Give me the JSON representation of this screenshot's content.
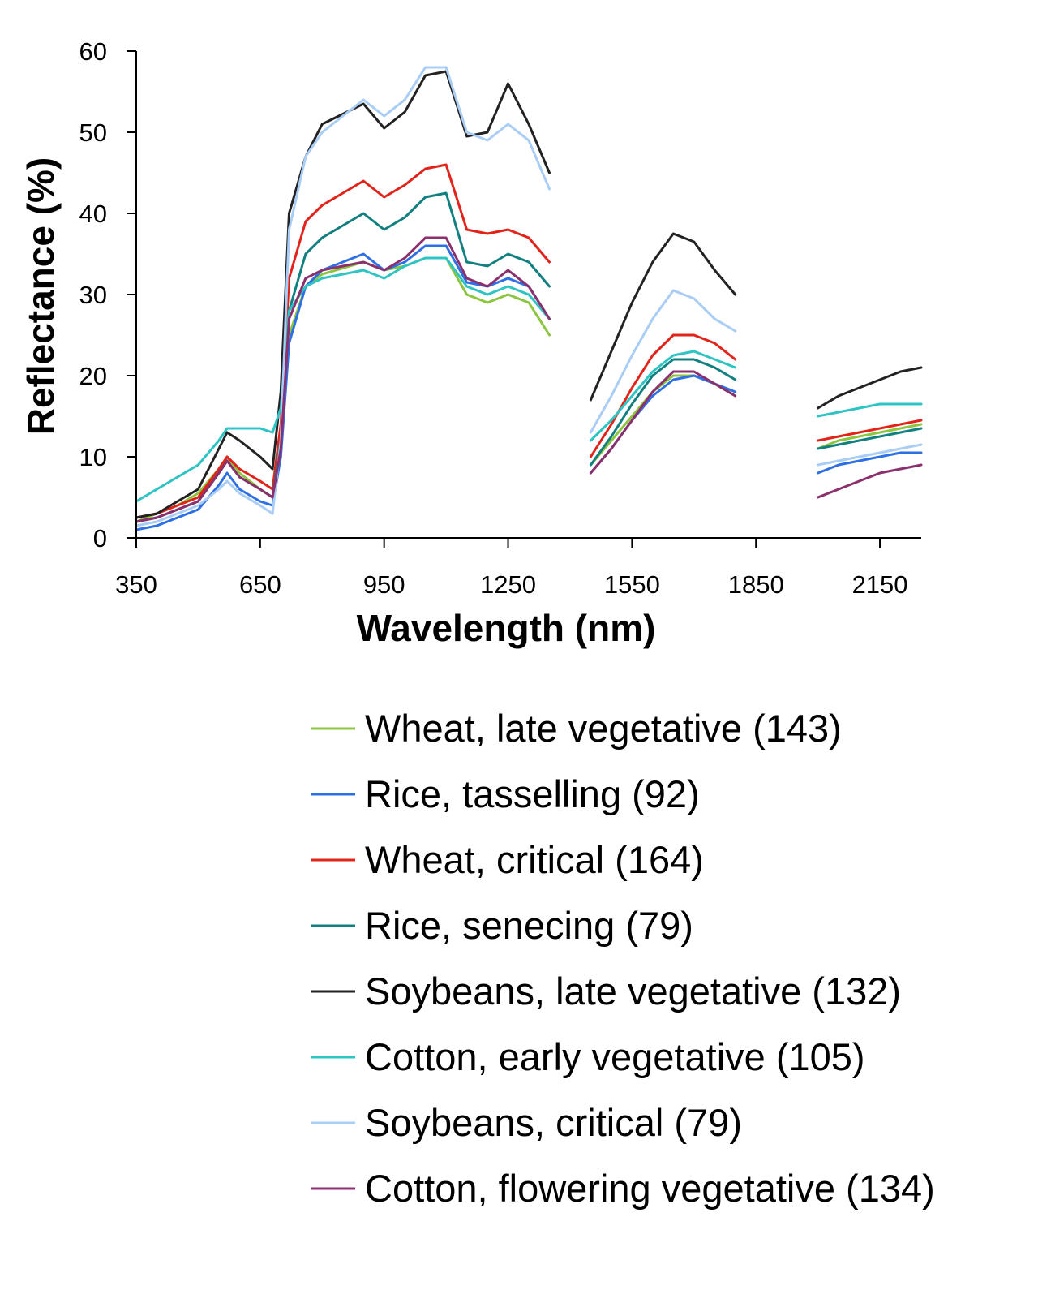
{
  "chart_data": {
    "type": "line",
    "title": "",
    "xlabel": "Wavelength (nm)",
    "ylabel": "Reflectance (%)",
    "xlim": [
      350,
      2250
    ],
    "ylim": [
      0,
      60
    ],
    "x_ticks": [
      350,
      650,
      950,
      1250,
      1550,
      1850,
      2150
    ],
    "y_ticks": [
      0,
      10,
      20,
      30,
      40,
      50,
      60
    ],
    "grid": false,
    "legend_position": "bottom",
    "segments": [
      [
        350,
        1350
      ],
      [
        1450,
        1800
      ],
      [
        1990,
        2250
      ]
    ],
    "x": [
      350,
      400,
      450,
      500,
      550,
      570,
      600,
      650,
      680,
      700,
      720,
      760,
      800,
      900,
      950,
      1000,
      1050,
      1100,
      1150,
      1200,
      1250,
      1300,
      1350,
      1450,
      1500,
      1550,
      1600,
      1650,
      1700,
      1750,
      1800,
      2000,
      2050,
      2100,
      2150,
      2200,
      2250
    ],
    "series": [
      {
        "name": "Wheat, late vegetative (143)",
        "color": "#8cc63e",
        "values": [
          2,
          3,
          4,
          5.5,
          8.5,
          10,
          8,
          6,
          5,
          12,
          25,
          31,
          32.5,
          34,
          33,
          33.5,
          34.5,
          34.5,
          30,
          29,
          30,
          29,
          25,
          9,
          12,
          15,
          18,
          20,
          20,
          19,
          17.5,
          11,
          12,
          12.5,
          13,
          13.5,
          14
        ]
      },
      {
        "name": "Rice, tasselling (92)",
        "color": "#2f6fe4",
        "values": [
          1,
          1.5,
          2.5,
          3.5,
          6.5,
          8,
          6,
          4.5,
          4,
          10,
          24,
          31,
          33,
          35,
          33,
          34,
          36,
          36,
          31.5,
          31,
          32,
          31,
          27,
          8,
          11,
          14.5,
          17.5,
          19.5,
          20,
          19,
          18,
          8,
          9,
          9.5,
          10,
          10.5,
          10.5
        ]
      },
      {
        "name": "Wheat, critical (164)",
        "color": "#e2231a",
        "values": [
          2.5,
          3,
          4,
          5,
          8.5,
          10,
          8.5,
          7,
          6,
          14,
          32,
          39,
          41,
          44,
          42,
          43.5,
          45.5,
          46,
          38,
          37.5,
          38,
          37,
          34,
          10,
          14,
          18.5,
          22.5,
          25,
          25,
          24,
          22,
          12,
          12.5,
          13,
          13.5,
          14,
          14.5
        ]
      },
      {
        "name": "Rice, senecing (79)",
        "color": "#128080",
        "values": [
          2,
          2.5,
          3.5,
          4.5,
          8,
          9.5,
          7.5,
          6,
          5,
          12,
          28,
          35,
          37,
          40,
          38,
          39.5,
          42,
          42.5,
          34,
          33.5,
          35,
          34,
          31,
          9,
          12.5,
          16.5,
          20,
          22,
          22,
          21,
          19.5,
          11,
          11.5,
          12,
          12.5,
          13,
          13.5
        ]
      },
      {
        "name": "Soybeans, late vegetative (132)",
        "color": "#222222",
        "values": [
          2.5,
          3,
          4.5,
          6,
          11,
          13,
          12,
          10,
          8.5,
          18,
          40,
          47,
          51,
          53.5,
          50.5,
          52.5,
          57,
          57.5,
          49.5,
          50,
          56,
          51,
          45,
          17,
          23,
          29,
          34,
          37.5,
          36.5,
          33,
          30,
          16,
          17.5,
          18.5,
          19.5,
          20.5,
          21
        ]
      },
      {
        "name": "Cotton, early vegetative (105)",
        "color": "#2ec4c4",
        "values": [
          4.5,
          6,
          7.5,
          9,
          12,
          13.5,
          13.5,
          13.5,
          13,
          16,
          28,
          31,
          32,
          33,
          32,
          33.5,
          34.5,
          34.5,
          31,
          30,
          31,
          30,
          27,
          12,
          14.5,
          17.5,
          20.5,
          22.5,
          23,
          22,
          21,
          15,
          15.5,
          16,
          16.5,
          16.5,
          16.5
        ]
      },
      {
        "name": "Soybeans, critical (79)",
        "color": "#a9cdf5",
        "values": [
          1.5,
          2,
          3,
          4,
          6,
          7,
          5.5,
          4,
          3,
          12,
          38,
          47,
          50,
          54,
          52,
          54,
          58,
          58,
          50,
          49,
          51,
          49,
          43,
          13,
          17.5,
          22.5,
          27,
          30.5,
          29.5,
          27,
          25.5,
          9,
          9.5,
          10,
          10.5,
          11,
          11.5
        ]
      },
      {
        "name": "Cotton, flowering vegetative (134)",
        "color": "#8b2f6d",
        "values": [
          2,
          2.5,
          3.5,
          4.5,
          8,
          9.5,
          7.5,
          6,
          5,
          11,
          27,
          32,
          33,
          34,
          33,
          34.5,
          37,
          37,
          32,
          31,
          33,
          31,
          27,
          8,
          11,
          14.5,
          18,
          20.5,
          20.5,
          19,
          17.5,
          5,
          6,
          7,
          8,
          8.5,
          9
        ]
      }
    ]
  },
  "legend": {
    "items": [
      {
        "label": "Wheat, late vegetative (143)",
        "color": "#8cc63e"
      },
      {
        "label": "Rice, tasselling (92)",
        "color": "#2f6fe4"
      },
      {
        "label": "Wheat, critical (164)",
        "color": "#e2231a"
      },
      {
        "label": "Rice, senecing (79)",
        "color": "#128080"
      },
      {
        "label": "Soybeans, late vegetative (132)",
        "color": "#222222"
      },
      {
        "label": "Cotton, early vegetative (105)",
        "color": "#2ec4c4"
      },
      {
        "label": "Soybeans, critical (79)",
        "color": "#a9cdf5"
      },
      {
        "label": "Cotton, flowering vegetative (134)",
        "color": "#8b2f6d"
      }
    ]
  }
}
